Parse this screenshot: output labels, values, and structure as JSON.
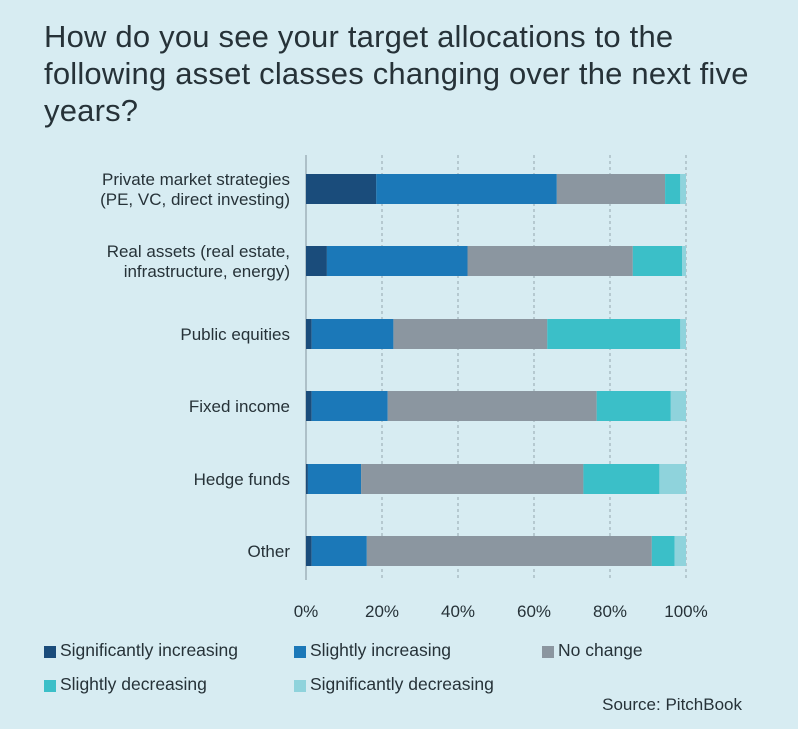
{
  "title": "How do you see your target allocations to the following asset classes changing over the next five years?",
  "source": "Source: PitchBook",
  "chart_data": {
    "type": "bar",
    "orientation": "horizontal",
    "stacked": true,
    "title": "How do you see your target allocations to the following asset classes changing over the next five years?",
    "xlabel": "",
    "ylabel": "",
    "xlim": [
      0,
      100
    ],
    "x_ticks": [
      "0%",
      "20%",
      "40%",
      "60%",
      "80%",
      "100%"
    ],
    "grid": "vertical dashed",
    "legend_position": "bottom",
    "categories": [
      [
        "Private market strategies",
        "(PE, VC, direct investing)"
      ],
      [
        "Real assets (real estate,",
        "infrastructure, energy)"
      ],
      [
        "Public equities"
      ],
      [
        "Fixed income"
      ],
      [
        "Hedge funds"
      ],
      [
        "Other"
      ]
    ],
    "series": [
      {
        "name": "Significantly increasing",
        "color": "#1a4c7b",
        "values": [
          18.5,
          5.5,
          1.5,
          1.5,
          0.5,
          1.5
        ]
      },
      {
        "name": "Slightly increasing",
        "color": "#1b78b8",
        "values": [
          47.5,
          37,
          21.5,
          20,
          14,
          14.5
        ]
      },
      {
        "name": "No change",
        "color": "#8b96a0",
        "values": [
          28.5,
          43.5,
          40.5,
          55,
          58.5,
          75
        ]
      },
      {
        "name": "Slightly decreasing",
        "color": "#3bbfc8",
        "values": [
          4,
          13,
          35,
          19.5,
          20,
          6
        ]
      },
      {
        "name": "Significantly decreasing",
        "color": "#8fd3dc",
        "values": [
          1.5,
          1,
          1.5,
          4,
          7,
          3
        ]
      }
    ]
  }
}
